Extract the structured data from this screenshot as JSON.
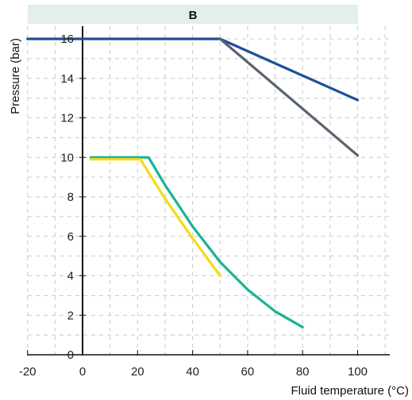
{
  "chart_data": {
    "type": "line",
    "panel_label": "B",
    "xlabel": "Fluid temperature (°C)",
    "ylabel": "Pressure (bar)",
    "xlim": [
      -20,
      100
    ],
    "ylim": [
      0,
      16
    ],
    "x_ticks": [
      -20,
      0,
      20,
      40,
      60,
      80,
      100
    ],
    "y_ticks": [
      0,
      2,
      4,
      6,
      8,
      10,
      12,
      14,
      16
    ],
    "x_tick_labels": [
      "-20",
      "0",
      "20",
      "40",
      "60",
      "80",
      "100"
    ],
    "y_tick_labels": [
      "0",
      "2",
      "4",
      "6",
      "8",
      "10",
      "12",
      "14",
      "16"
    ],
    "grid": true,
    "series": [
      {
        "color": "#1f4e99",
        "points": [
          [
            -20,
            16
          ],
          [
            50,
            16
          ],
          [
            100,
            12.9
          ]
        ]
      },
      {
        "color": "#5a6370",
        "points": [
          [
            50,
            16
          ],
          [
            100,
            10.1
          ]
        ]
      },
      {
        "color": "#1ab394",
        "points": [
          [
            3,
            10
          ],
          [
            24,
            10
          ],
          [
            30,
            8.6
          ],
          [
            40,
            6.5
          ],
          [
            50,
            4.7
          ],
          [
            60,
            3.3
          ],
          [
            70,
            2.2
          ],
          [
            80,
            1.4
          ]
        ]
      },
      {
        "color": "#f2dc1a",
        "points": [
          [
            3,
            9.9
          ],
          [
            21,
            9.9
          ],
          [
            30,
            7.9
          ],
          [
            40,
            5.9
          ],
          [
            50,
            4.0
          ]
        ]
      }
    ]
  }
}
